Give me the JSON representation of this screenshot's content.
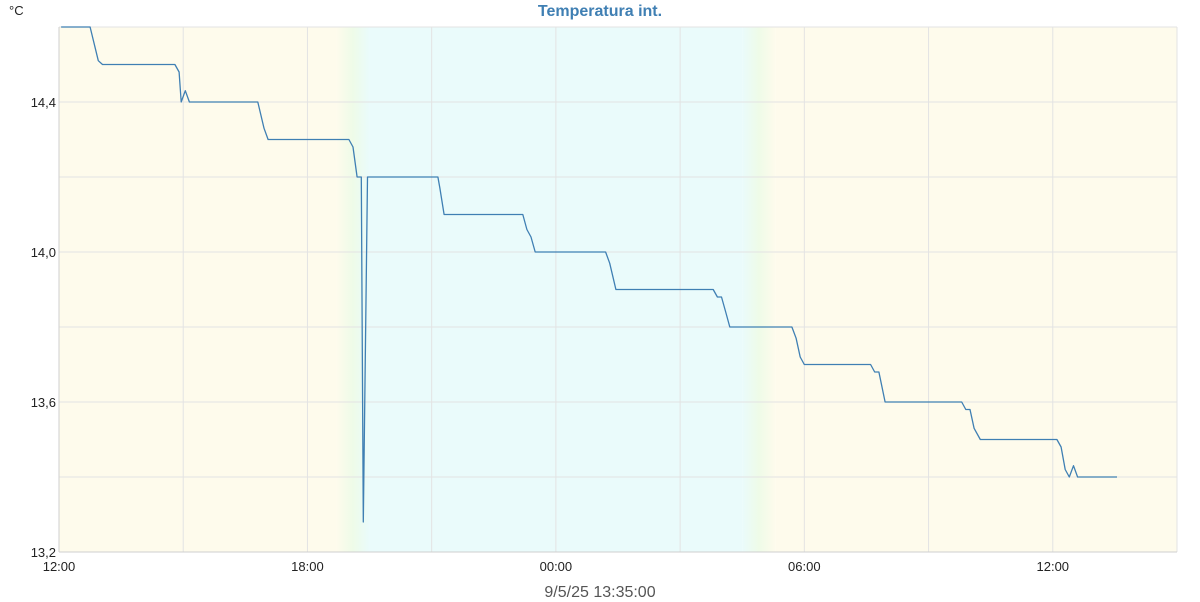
{
  "chart_data": {
    "type": "line",
    "title": "Temperatura int.",
    "y_unit": "°C",
    "footer": "9/5/25 13:35:00",
    "x_range_hours": [
      0,
      27
    ],
    "x_ticks": [
      {
        "h": 0,
        "label": "12:00"
      },
      {
        "h": 6,
        "label": "18:00"
      },
      {
        "h": 12,
        "label": "00:00"
      },
      {
        "h": 18,
        "label": "06:00"
      },
      {
        "h": 24,
        "label": "12:00"
      }
    ],
    "ylim": [
      13.2,
      14.6
    ],
    "y_ticks": [
      {
        "v": 13.2,
        "label": "13,2"
      },
      {
        "v": 13.6,
        "label": "13,6"
      },
      {
        "v": 14.0,
        "label": "14,0"
      },
      {
        "v": 14.4,
        "label": "14,4"
      }
    ],
    "grid": true,
    "colors": {
      "line": "#3f7fb3",
      "day_background": "#fefbec",
      "night_background": "#eafbfb",
      "twilight": "#eefbe8",
      "grid": "#e3e3e3"
    },
    "background_periods": [
      {
        "phase": "day",
        "from": 0,
        "to": 6.7
      },
      {
        "phase": "night",
        "from": 7.5,
        "to": 16.5
      },
      {
        "phase": "day",
        "from": 17.3,
        "to": 27
      }
    ],
    "series": [
      {
        "points": [
          [
            0.05,
            14.6
          ],
          [
            0.75,
            14.6
          ],
          [
            0.95,
            14.51
          ],
          [
            1.05,
            14.5
          ],
          [
            2.8,
            14.5
          ],
          [
            2.9,
            14.48
          ],
          [
            2.95,
            14.4
          ],
          [
            3.05,
            14.43
          ],
          [
            3.15,
            14.4
          ],
          [
            4.8,
            14.4
          ],
          [
            4.95,
            14.33
          ],
          [
            5.05,
            14.3
          ],
          [
            7.0,
            14.3
          ],
          [
            7.1,
            14.28
          ],
          [
            7.2,
            14.2
          ],
          [
            7.3,
            14.2
          ],
          [
            7.35,
            13.28
          ],
          [
            7.45,
            14.2
          ],
          [
            9.15,
            14.2
          ],
          [
            9.2,
            14.17
          ],
          [
            9.3,
            14.1
          ],
          [
            11.2,
            14.1
          ],
          [
            11.3,
            14.06
          ],
          [
            11.4,
            14.04
          ],
          [
            11.5,
            14.0
          ],
          [
            13.2,
            14.0
          ],
          [
            13.3,
            13.97
          ],
          [
            13.45,
            13.9
          ],
          [
            15.8,
            13.9
          ],
          [
            15.9,
            13.88
          ],
          [
            16.0,
            13.88
          ],
          [
            16.1,
            13.84
          ],
          [
            16.2,
            13.8
          ],
          [
            17.7,
            13.8
          ],
          [
            17.8,
            13.77
          ],
          [
            17.9,
            13.72
          ],
          [
            18.0,
            13.7
          ],
          [
            19.6,
            13.7
          ],
          [
            19.7,
            13.68
          ],
          [
            19.8,
            13.68
          ],
          [
            19.95,
            13.6
          ],
          [
            21.8,
            13.6
          ],
          [
            21.9,
            13.58
          ],
          [
            22.0,
            13.58
          ],
          [
            22.1,
            13.53
          ],
          [
            22.25,
            13.5
          ],
          [
            24.1,
            13.5
          ],
          [
            24.2,
            13.48
          ],
          [
            24.3,
            13.42
          ],
          [
            24.4,
            13.4
          ],
          [
            24.5,
            13.43
          ],
          [
            24.6,
            13.4
          ],
          [
            25.55,
            13.4
          ]
        ]
      }
    ]
  }
}
